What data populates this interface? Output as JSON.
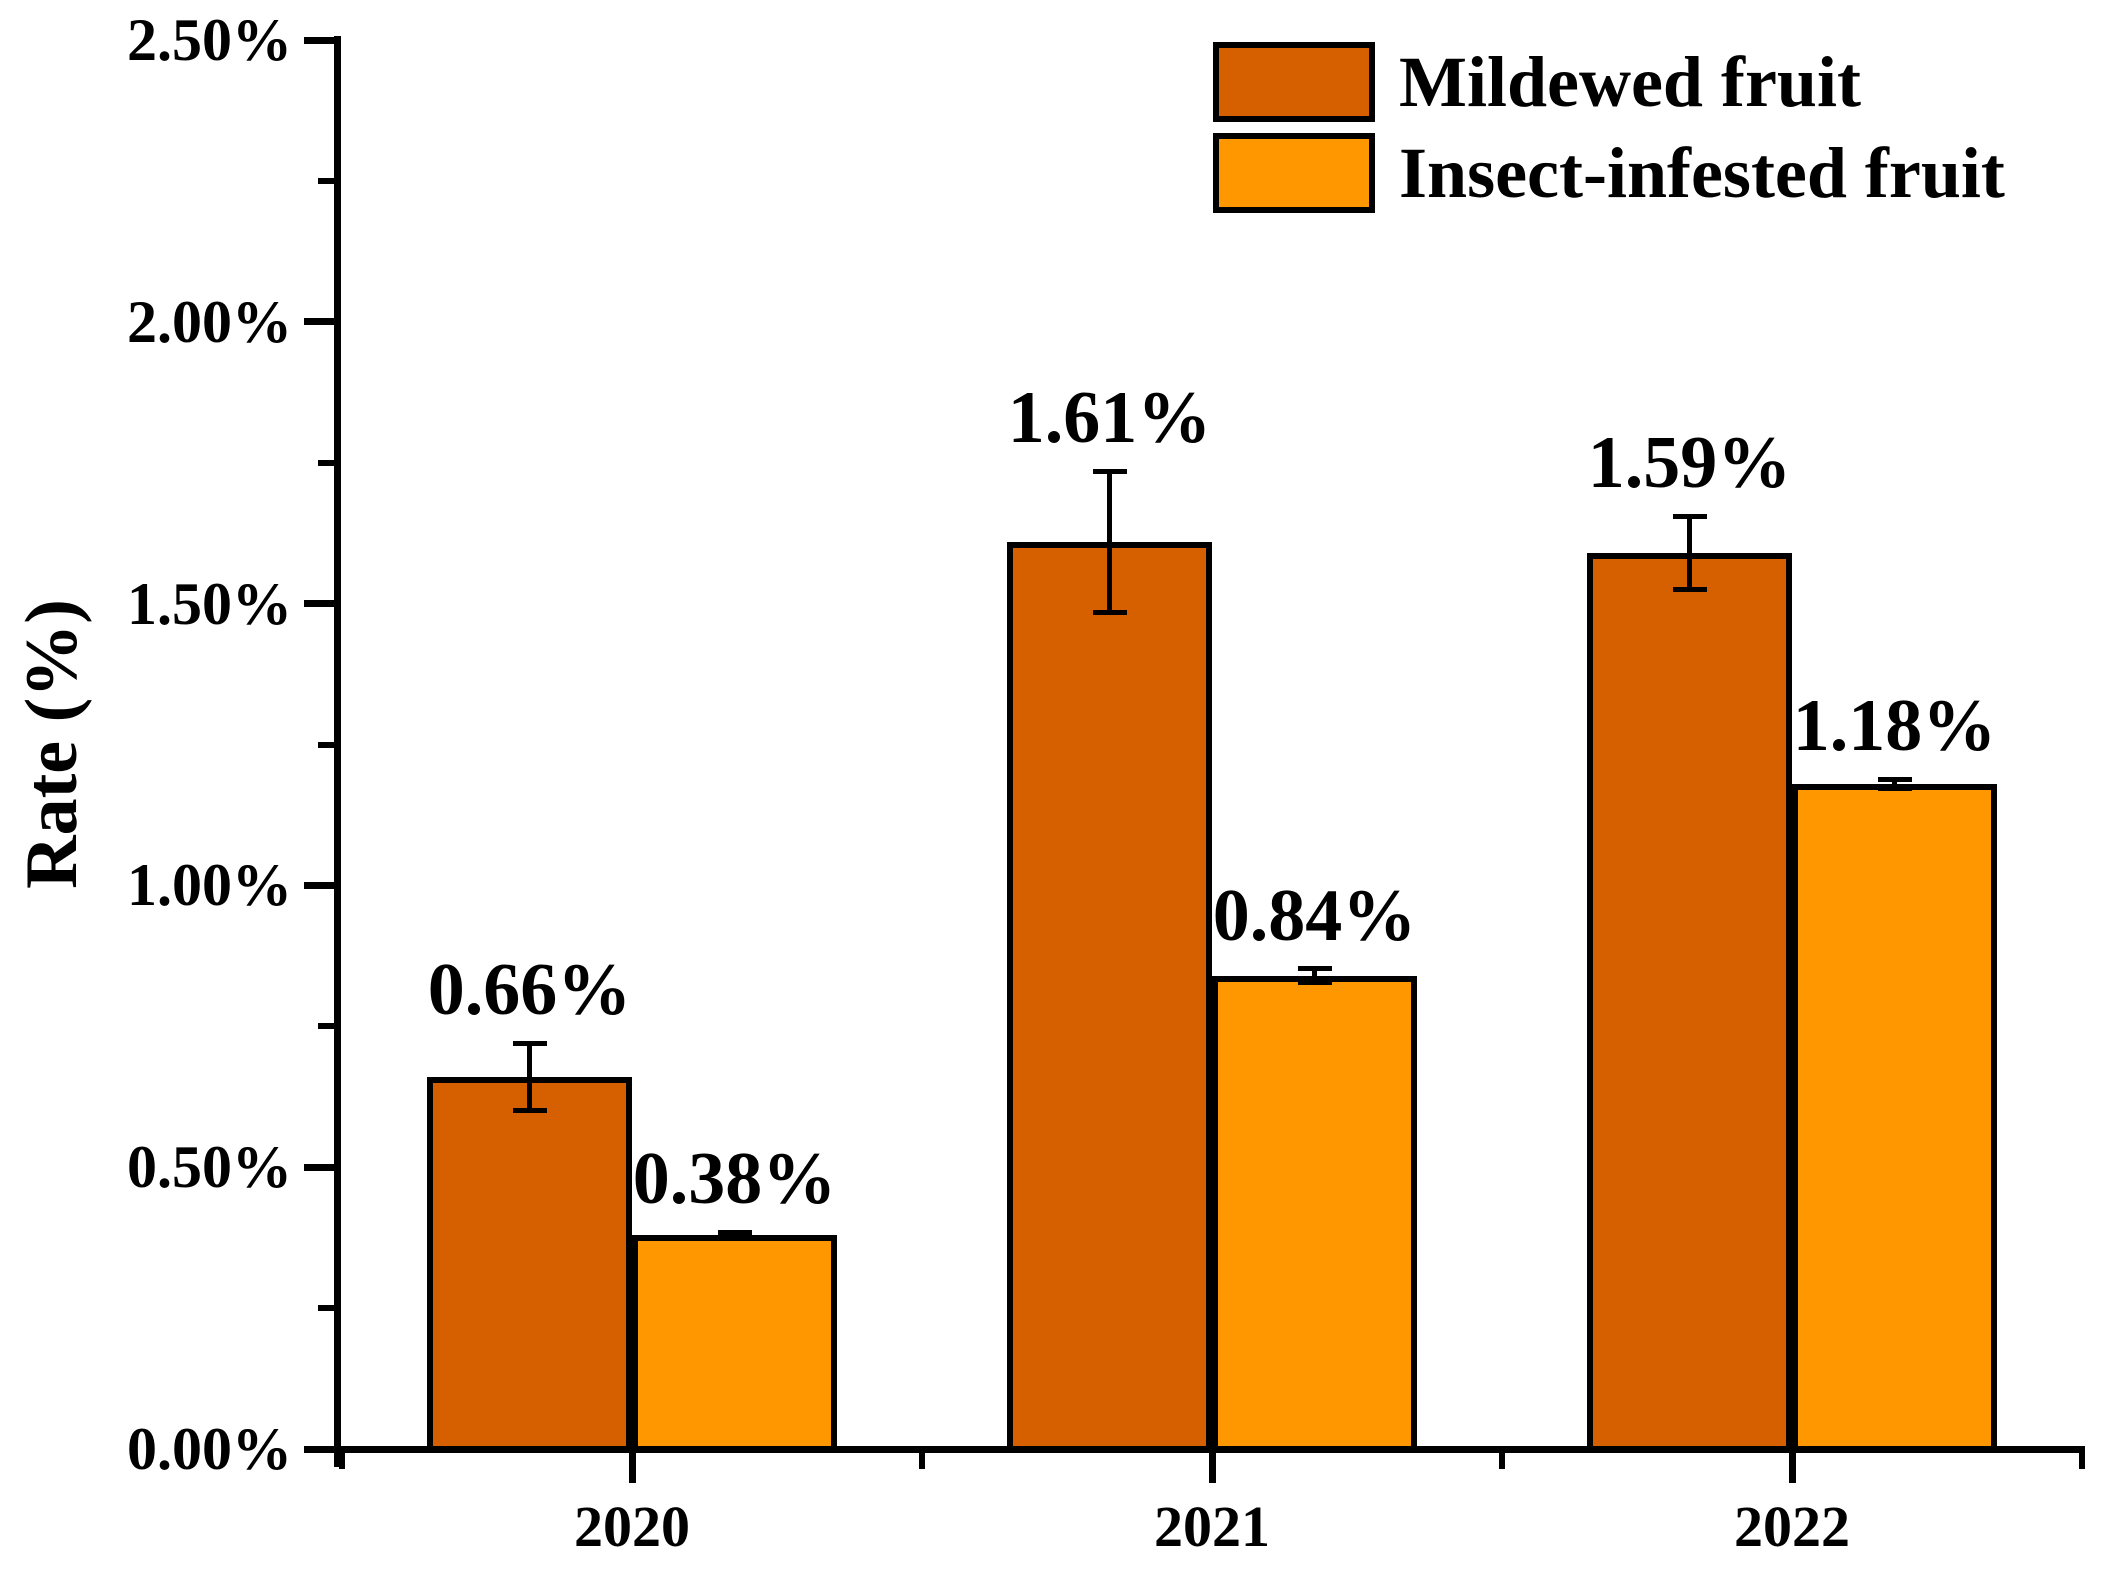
{
  "chart_data": {
    "type": "bar",
    "title": "",
    "xlabel": "",
    "ylabel": "Rate (%)",
    "categories": [
      "2020",
      "2021",
      "2022"
    ],
    "series": [
      {
        "name": "Mildewed fruit",
        "color": "#D65F00",
        "values": [
          0.66,
          1.61,
          1.59
        ],
        "errors": [
          0.06,
          0.125,
          0.065
        ],
        "labels": [
          "0.66%",
          "1.61%",
          "1.59%"
        ]
      },
      {
        "name": "Insect-infested fruit",
        "color": "#FF9800",
        "values": [
          0.38,
          0.84,
          1.18
        ],
        "errors": [
          0.005,
          0.012,
          0.008
        ],
        "labels": [
          "0.38%",
          "0.84%",
          "1.18%"
        ]
      }
    ],
    "ylim": [
      0,
      2.5
    ],
    "yticks": {
      "values": [
        0,
        0.5,
        1.0,
        1.5,
        2.0,
        2.5
      ],
      "labels": [
        "0.00%",
        "0.50%",
        "1.00%",
        "1.50%",
        "2.00%",
        "2.50%"
      ],
      "minor_step": 0.25
    },
    "legend": {
      "position": "top-right",
      "entries": [
        "Mildewed fruit",
        "Insect-infested fruit"
      ]
    },
    "grid": false,
    "axis_color": "#000000",
    "error_bars": true
  }
}
